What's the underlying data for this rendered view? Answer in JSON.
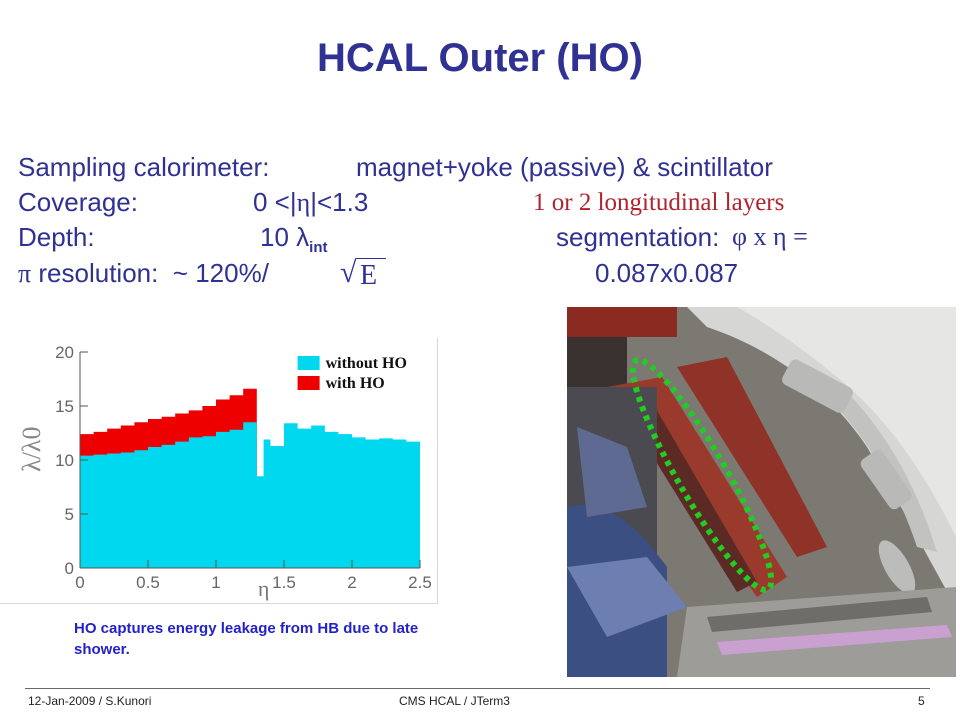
{
  "title": "HCAL Outer (HO)",
  "specs": {
    "sampling_label": "Sampling calorimeter:",
    "sampling_value": "magnet+yoke (passive) & scintillator",
    "coverage_label": "Coverage:",
    "coverage_value_left": "0 <|",
    "coverage_eta": "η",
    "coverage_value_right": "|<1.3",
    "layers": "1 or 2 longitudinal layers",
    "depth_label": "Depth:",
    "depth_value": "10 λ",
    "depth_sub": "int",
    "segmentation_label": "segmentation:",
    "segmentation_formula": "φ x η =",
    "resolution_pi": "π",
    "resolution_label": "resolution:",
    "resolution_value": "~ 120%/",
    "sqrt_symbol": "√",
    "sqrt_arg": "E",
    "segmentation_value": "0.087x0.087"
  },
  "caption": "HO captures energy leakage from HB  due to late shower.",
  "footer": {
    "left": "12-Jan-2009  / S.Kunori",
    "center": "CMS HCAL / JTerm3",
    "page": "5"
  },
  "colors": {
    "title": "#2f3193",
    "text": "#2f3193",
    "red_text": "#b2222e",
    "caption": "#2222c8",
    "without_ho": "#00d8f0",
    "with_ho": "#ee0000",
    "outline_dots": "#22cc22"
  },
  "chart_data": {
    "type": "area",
    "xlabel": "η",
    "ylabel": "λ/λ0",
    "xlim": [
      0,
      2.5
    ],
    "ylim": [
      0,
      20
    ],
    "x_ticks": [
      "0",
      "0.5",
      "1",
      "1.5",
      "2",
      "2.5"
    ],
    "y_ticks": [
      "0",
      "5",
      "10",
      "15",
      "20"
    ],
    "legend_position": "top-right",
    "series": [
      {
        "name": "without HO",
        "x": [
          0.0,
          0.1,
          0.2,
          0.3,
          0.4,
          0.5,
          0.6,
          0.7,
          0.8,
          0.9,
          1.0,
          1.1,
          1.2,
          1.3,
          1.35,
          1.4,
          1.5,
          1.6,
          1.7,
          1.8,
          1.9,
          2.0,
          2.1,
          2.2,
          2.3,
          2.4,
          2.5
        ],
        "y": [
          10.4,
          10.5,
          10.6,
          10.7,
          10.9,
          11.2,
          11.4,
          11.7,
          12.1,
          12.2,
          12.6,
          12.8,
          13.5,
          8.5,
          11.9,
          11.3,
          13.4,
          12.9,
          13.2,
          12.6,
          12.4,
          12.1,
          11.9,
          12.0,
          11.9,
          11.7,
          11.6
        ]
      },
      {
        "name": "with HO",
        "x": [
          0.0,
          0.1,
          0.2,
          0.3,
          0.4,
          0.5,
          0.6,
          0.7,
          0.8,
          0.9,
          1.0,
          1.1,
          1.2,
          1.3
        ],
        "y": [
          12.4,
          12.6,
          12.9,
          13.2,
          13.5,
          13.8,
          14.0,
          14.3,
          14.6,
          15.0,
          15.6,
          16.0,
          16.6,
          16.8
        ]
      }
    ]
  }
}
